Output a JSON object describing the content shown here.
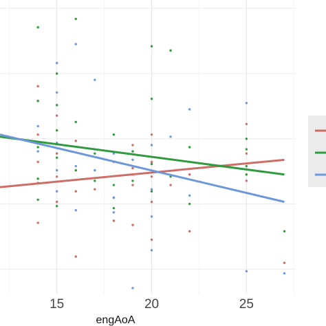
{
  "chart_data": {
    "type": "scatter",
    "title": "",
    "xlabel": "engAoA",
    "ylabel": "",
    "xlim": [
      12,
      27.6
    ],
    "ylim": [
      0,
      14
    ],
    "x_ticks": [
      15,
      20,
      25
    ],
    "grid": true,
    "legend_position": "right",
    "colors": {
      "red": "#cc6e66",
      "green": "#2f9a3e",
      "blue": "#6c97d9"
    },
    "series": [
      {
        "color": "red",
        "points": [
          [
            14,
            9.9
          ],
          [
            14,
            7.6
          ],
          [
            14,
            6.3
          ],
          [
            14,
            5.3
          ],
          [
            14,
            3.4
          ],
          [
            15,
            8.5
          ],
          [
            15,
            6.7
          ],
          [
            15,
            5.6
          ],
          [
            15,
            4.4
          ],
          [
            16,
            7.3
          ],
          [
            16,
            5.9
          ],
          [
            16,
            4.9
          ],
          [
            16,
            1.8
          ],
          [
            17,
            6.9
          ],
          [
            17,
            5.0
          ],
          [
            18,
            6.3
          ],
          [
            18,
            4.6
          ],
          [
            18,
            3.5
          ],
          [
            19,
            7.1
          ],
          [
            19,
            6.0
          ],
          [
            19,
            5.2
          ],
          [
            19,
            3.3
          ],
          [
            20,
            7.6
          ],
          [
            20,
            6.3
          ],
          [
            20,
            5.6
          ],
          [
            20,
            4.4
          ],
          [
            20,
            2.6
          ],
          [
            21,
            5.2
          ],
          [
            22,
            5.7
          ],
          [
            22,
            3.0
          ],
          [
            25,
            8.1
          ],
          [
            25,
            6.7
          ],
          [
            25,
            5.4
          ],
          [
            27,
            1.5
          ]
        ],
        "trend": [
          [
            12,
            5.1
          ],
          [
            27,
            6.4
          ]
        ]
      },
      {
        "color": "green",
        "points": [
          [
            14,
            12.7
          ],
          [
            14,
            9.2
          ],
          [
            14,
            7.0
          ],
          [
            14,
            5.5
          ],
          [
            14,
            4.5
          ],
          [
            15,
            10.5
          ],
          [
            15,
            9.0
          ],
          [
            15,
            7.8
          ],
          [
            15,
            6.5
          ],
          [
            15,
            4.2
          ],
          [
            16,
            13.1
          ],
          [
            16,
            8.2
          ],
          [
            16,
            5.9
          ],
          [
            17,
            6.7
          ],
          [
            17,
            5.4
          ],
          [
            18,
            7.6
          ],
          [
            18,
            5.2
          ],
          [
            18,
            4.1
          ],
          [
            19,
            6.8
          ],
          [
            19,
            5.4
          ],
          [
            20,
            11.8
          ],
          [
            20,
            9.3
          ],
          [
            20,
            6.2
          ],
          [
            20,
            4.9
          ],
          [
            21,
            11.6
          ],
          [
            21,
            5.6
          ],
          [
            22,
            7.0
          ],
          [
            22,
            4.3
          ],
          [
            25,
            7.4
          ],
          [
            25,
            6.9
          ],
          [
            25,
            6.1
          ],
          [
            25,
            5.7
          ],
          [
            27,
            3.0
          ]
        ],
        "trend": [
          [
            12,
            7.5
          ],
          [
            27,
            5.7
          ]
        ]
      },
      {
        "color": "blue",
        "points": [
          [
            14,
            8.0
          ],
          [
            14,
            6.8
          ],
          [
            15,
            11.0
          ],
          [
            15,
            9.6
          ],
          [
            15,
            7.2
          ],
          [
            15,
            5.9
          ],
          [
            15,
            4.9
          ],
          [
            16,
            11.9
          ],
          [
            16,
            6.1
          ],
          [
            16,
            4.0
          ],
          [
            17,
            10.2
          ],
          [
            17,
            5.9
          ],
          [
            18,
            6.7
          ],
          [
            18,
            4.6
          ],
          [
            18,
            3.9
          ],
          [
            19,
            6.4
          ],
          [
            19,
            5.7
          ],
          [
            19,
            0.3
          ],
          [
            20,
            7.1
          ],
          [
            20,
            5.0
          ],
          [
            20,
            3.7
          ],
          [
            20,
            2.1
          ],
          [
            21,
            7.5
          ],
          [
            22,
            8.8
          ],
          [
            22,
            4.7
          ],
          [
            25,
            9.1
          ],
          [
            25,
            1.1
          ],
          [
            27,
            1.0
          ]
        ],
        "trend": [
          [
            12,
            7.6
          ],
          [
            27,
            4.4
          ]
        ]
      }
    ]
  }
}
